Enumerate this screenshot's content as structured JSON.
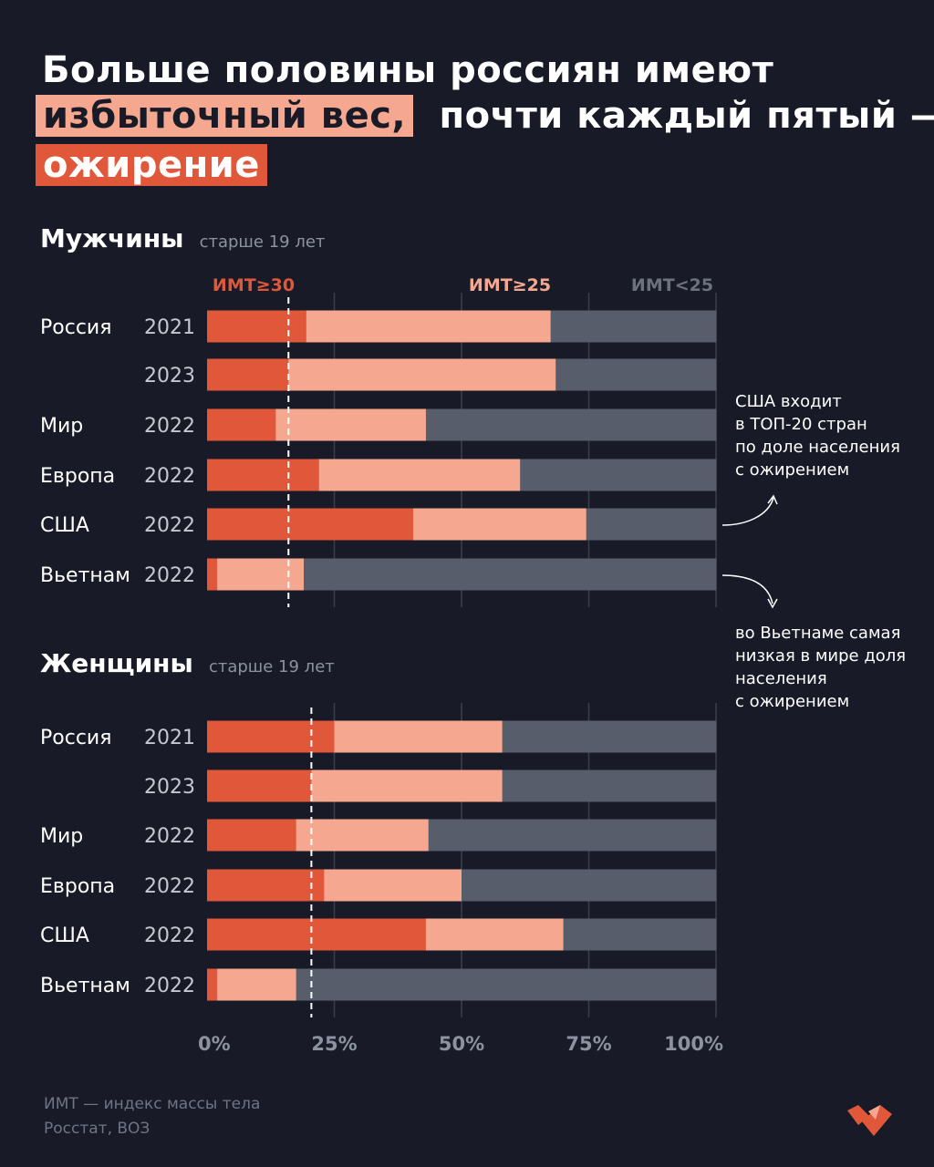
{
  "title": {
    "line1": "Больше половины россиян имеют",
    "line2_highlight": "избыточный вес,",
    "line2_rest": "почти каждый пятый —",
    "line3_highlight": "ожирение"
  },
  "legend": {
    "obese": "ИМТ≥30",
    "overweight": "ИМТ≥25",
    "normal": "ИМТ<25"
  },
  "colors": {
    "obese": "#e1573a",
    "overweight": "#f5a88f",
    "normal": "#575d6a",
    "background": "#181b27",
    "grid": "#3a3e4b"
  },
  "annotations": {
    "usa": [
      "США входит",
      "в ТОП-20 стран",
      "по доле населения",
      "с ожирением"
    ],
    "vietnam": [
      "во Вьетнаме самая",
      "низкая в мире доля",
      "населения",
      "с ожирением"
    ]
  },
  "footer": {
    "line1": "ИМТ — индекс массы тела",
    "line2": "Росстат, ВОЗ"
  },
  "chart_data": [
    {
      "type": "bar",
      "orientation": "horizontal",
      "stacked": true,
      "title": "Мужчины",
      "subtitle": "старше 19 лет",
      "categories": [
        "Россия",
        "",
        "Мир",
        "Европа",
        "США",
        "Вьетнам"
      ],
      "years": [
        "2021",
        "2023",
        "2022",
        "2022",
        "2022",
        "2022"
      ],
      "series": [
        {
          "name": "ИМТ≥30",
          "values": [
            19.5,
            16,
            13.5,
            22,
            40.5,
            2
          ]
        },
        {
          "name": "ИМТ≥25",
          "values": [
            48,
            52.5,
            29.5,
            39.5,
            34,
            17
          ]
        },
        {
          "name": "ИМТ<25",
          "values": [
            32.5,
            31.5,
            57,
            38.5,
            25.5,
            81
          ]
        }
      ],
      "reference_line": 16,
      "xlim": [
        0,
        100
      ]
    },
    {
      "type": "bar",
      "orientation": "horizontal",
      "stacked": true,
      "title": "Женщины",
      "subtitle": "старше 19 лет",
      "categories": [
        "Россия",
        "",
        "Мир",
        "Европа",
        "США",
        "Вьетнам"
      ],
      "years": [
        "2021",
        "2023",
        "2022",
        "2022",
        "2022",
        "2022"
      ],
      "series": [
        {
          "name": "ИМТ≥30",
          "values": [
            25,
            20.5,
            17.5,
            23,
            43,
            2
          ]
        },
        {
          "name": "ИМТ≥25",
          "values": [
            33,
            37.5,
            26,
            27,
            27,
            15.5
          ]
        },
        {
          "name": "ИМТ<25",
          "values": [
            42,
            42,
            56.5,
            50,
            30,
            82.5
          ]
        }
      ],
      "reference_line": 20.5,
      "xlim": [
        0,
        100
      ]
    }
  ],
  "x_ticks": [
    "0%",
    "25%",
    "50%",
    "75%",
    "100%"
  ]
}
